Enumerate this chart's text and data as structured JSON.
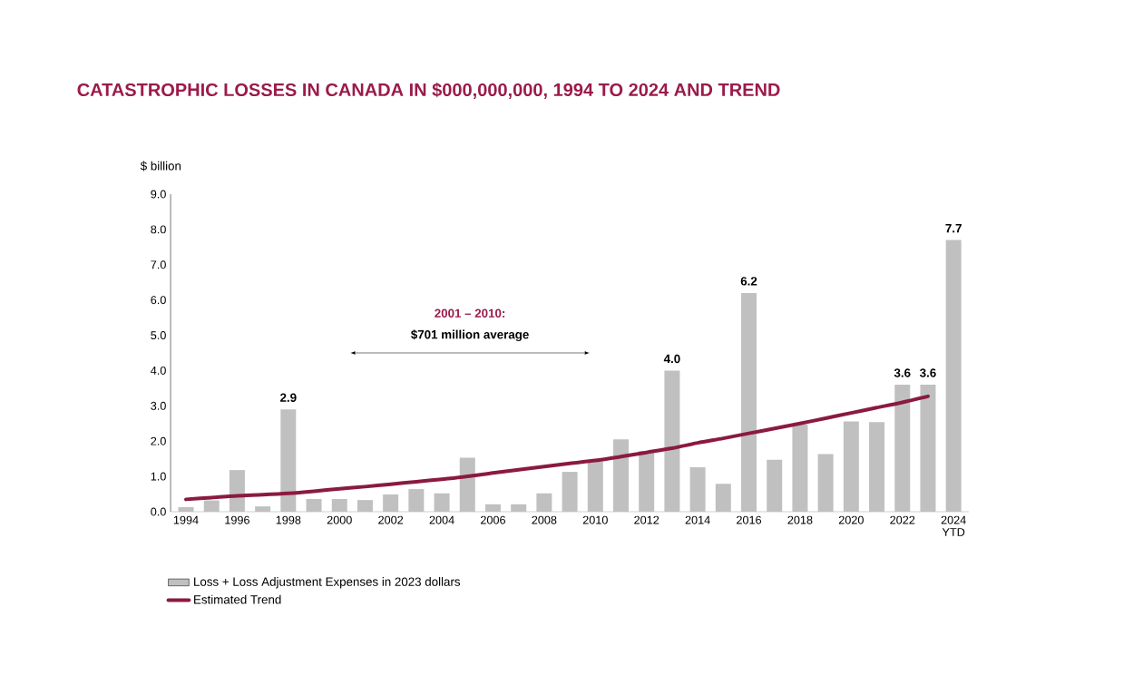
{
  "chart_data": {
    "type": "bar",
    "title": "CATASTROPHIC LOSSES IN CANADA IN $000,000,000, 1994 TO 2024 AND TREND",
    "ylabel": "$ billion",
    "categories": [
      "1994",
      null,
      "1996",
      null,
      "1998",
      null,
      "2000",
      null,
      "2002",
      null,
      "2004",
      null,
      "2006",
      null,
      "2008",
      null,
      "2010",
      null,
      "2012",
      null,
      "2014",
      null,
      "2016",
      null,
      "2018",
      null,
      "2020",
      null,
      "2022",
      null,
      "2024 YTD"
    ],
    "series": [
      {
        "name": "Loss + Loss Adjustment Expenses in 2023 dollars",
        "color": "#c0c0c0",
        "values": [
          0.13,
          0.32,
          1.18,
          0.15,
          2.9,
          0.36,
          0.36,
          0.33,
          0.49,
          0.64,
          0.52,
          1.53,
          0.21,
          0.21,
          0.52,
          1.13,
          1.43,
          2.05,
          1.72,
          4.0,
          1.26,
          0.79,
          6.2,
          1.47,
          2.47,
          1.63,
          2.56,
          2.54,
          3.6,
          3.6,
          7.7
        ],
        "value_labels": [
          null,
          null,
          null,
          null,
          "2.9",
          null,
          null,
          null,
          null,
          null,
          null,
          null,
          null,
          null,
          null,
          null,
          null,
          null,
          null,
          "4.0",
          null,
          null,
          "6.2",
          null,
          null,
          null,
          null,
          null,
          "3.6",
          "3.6",
          "7.7"
        ]
      },
      {
        "name": "Estimated Trend",
        "type": "line",
        "color": "#8b1a3f",
        "values": [
          0.35,
          0.4,
          0.45,
          0.48,
          0.52,
          0.58,
          0.65,
          0.71,
          0.78,
          0.85,
          0.92,
          1.0,
          1.1,
          1.19,
          1.28,
          1.37,
          1.45,
          1.56,
          1.68,
          1.8,
          1.95,
          2.08,
          2.22,
          2.36,
          2.5,
          2.65,
          2.8,
          2.95,
          3.1,
          3.27,
          null
        ]
      }
    ],
    "ylim": [
      0,
      9
    ],
    "yticks": [
      {
        "value": 0,
        "label": "0.0"
      },
      {
        "value": 1,
        "label": "1.0"
      },
      {
        "value": 2,
        "label": "2.0"
      },
      {
        "value": 3,
        "label": "3.0"
      },
      {
        "value": 4,
        "label": "4.0"
      },
      {
        "value": 5,
        "label": "5.0"
      },
      {
        "value": 6,
        "label": "6.0"
      },
      {
        "value": 7,
        "label": "7.0"
      },
      {
        "value": 8,
        "label": "8.0"
      },
      {
        "value": 9,
        "label": "9.0"
      }
    ],
    "grid": false,
    "legend": "bottom left",
    "marker": "none",
    "line_style": "solid",
    "annotations": [
      "2001 – 2010:",
      "$701 million average"
    ]
  }
}
